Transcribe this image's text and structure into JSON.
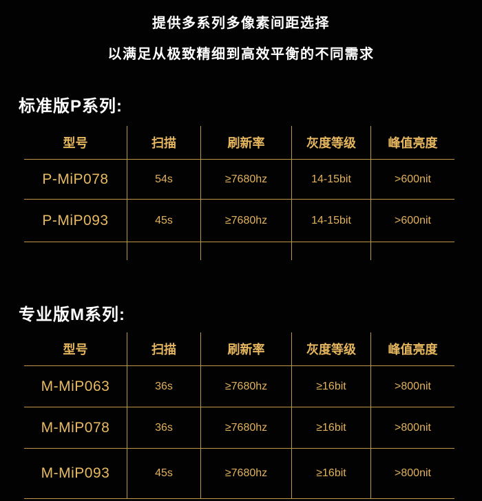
{
  "page": {
    "title_line1": "提供多系列多像素间距选择",
    "title_line2": "以满足从极致精细到高效平衡的不同需求"
  },
  "colors": {
    "background": "#020202",
    "title_text": "#ffffff",
    "gold_text": "#e2b25d",
    "gold_line": "#c09a48"
  },
  "sections": [
    {
      "title": "标准版P系列:",
      "table": {
        "headers": [
          "型号",
          "扫描",
          "刷新率",
          "灰度等级",
          "峰值亮度"
        ],
        "rows": [
          [
            "P-MiP078",
            "54s",
            "≥7680hz",
            "14-15bit",
            ">600nit"
          ],
          [
            "P-MiP093",
            "45s",
            "≥7680hz",
            "14-15bit",
            ">600nit"
          ]
        ]
      }
    },
    {
      "title": "专业版M系列:",
      "table": {
        "headers": [
          "型号",
          "扫描",
          "刷新率",
          "灰度等级",
          "峰值亮度"
        ],
        "rows": [
          [
            "M-MiP063",
            "36s",
            "≥7680hz",
            "≥16bit",
            ">800nit"
          ],
          [
            "M-MiP078",
            "36s",
            "≥7680hz",
            "≥16bit",
            ">800nit"
          ],
          [
            "M-MiP093",
            "45s",
            "≥7680hz",
            "≥16bit",
            ">800nit"
          ]
        ]
      }
    }
  ]
}
